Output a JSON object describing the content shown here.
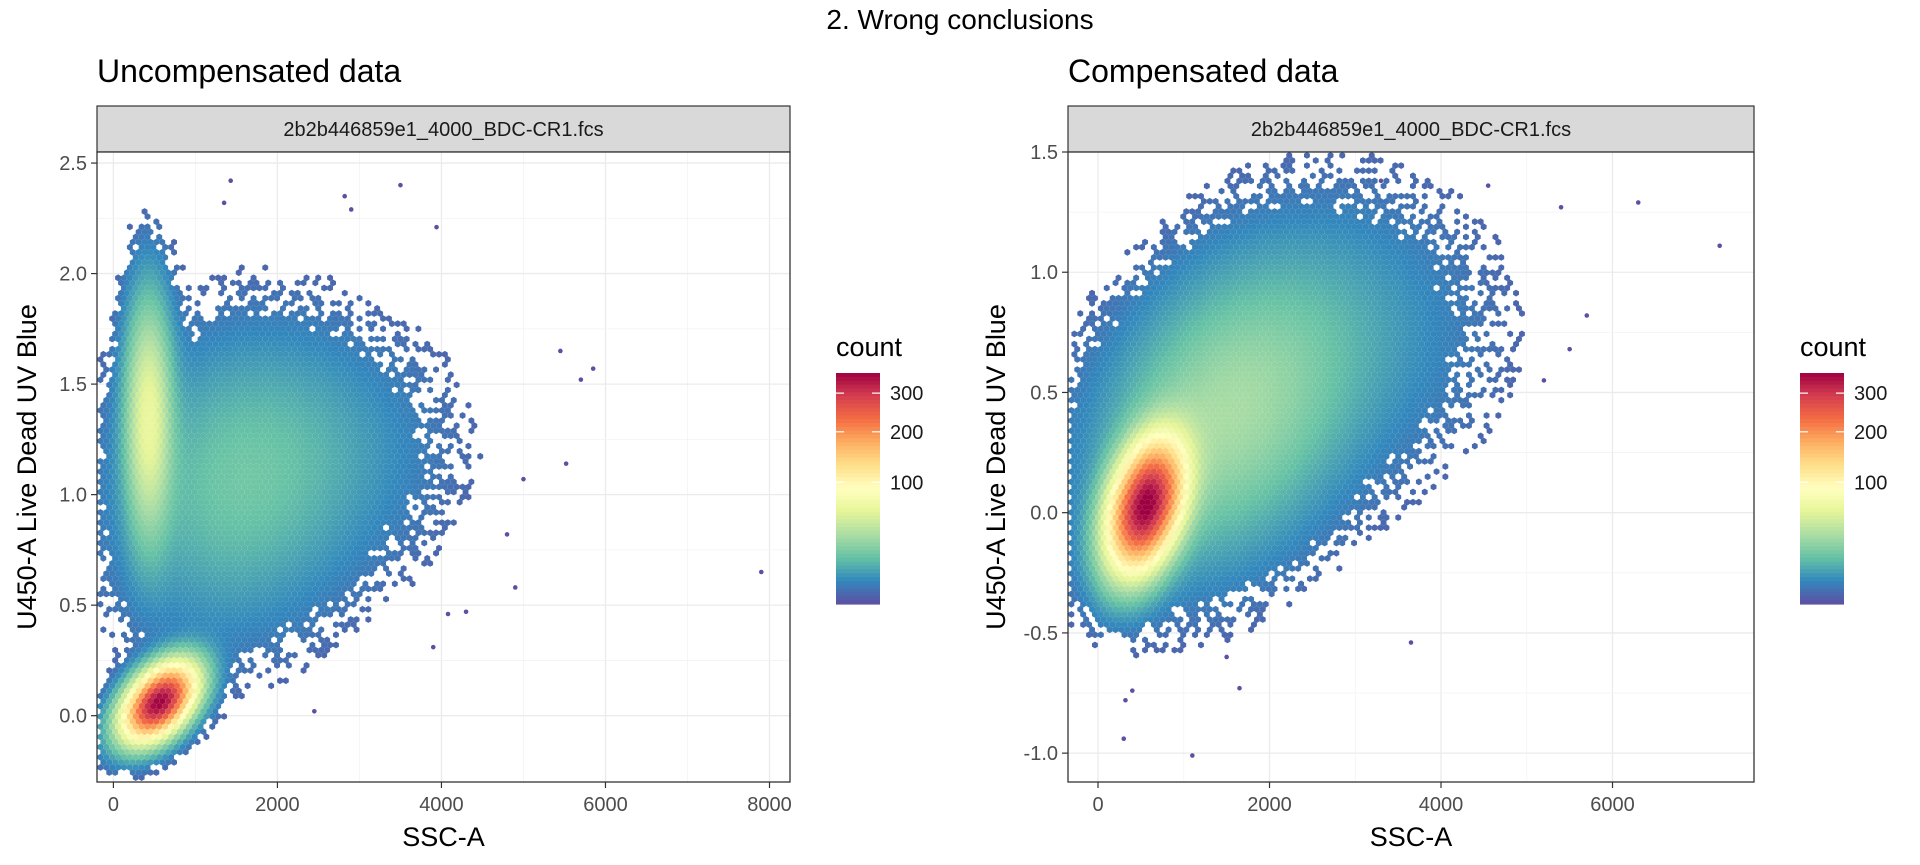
{
  "figure_title": "2. Wrong conclusions",
  "legend_title": "count",
  "chart_data": [
    {
      "type": "heatmap",
      "subtype": "hexbin",
      "title": "Uncompensated data",
      "facet_label": "2b2b446859e1_4000_BDC-CR1.fcs",
      "xlabel": "SSC-A",
      "ylabel": "U450-A Live Dead UV Blue",
      "xlim": [
        -200,
        8250
      ],
      "ylim": [
        -0.3,
        2.55
      ],
      "xticks": [
        0,
        2000,
        4000,
        6000,
        8000
      ],
      "yticks": [
        0.0,
        0.5,
        1.0,
        1.5,
        2.0,
        2.5
      ],
      "grid": true,
      "colorscale": "Spectral (reversed)",
      "count_range": [
        1,
        360
      ],
      "count_ticks": [
        100,
        200,
        300
      ],
      "clusters": [
        {
          "x": 560,
          "y": 0.06,
          "sx": 260,
          "sy": 0.1,
          "rho": 0.45,
          "weight": 1.0,
          "peak_count": 360
        },
        {
          "x": 430,
          "y": 1.35,
          "sx": 170,
          "sy": 0.32,
          "rho": 0.0,
          "weight": 0.45,
          "peak_count": 60
        },
        {
          "x": 1500,
          "y": 1.05,
          "sx": 850,
          "sy": 0.38,
          "rho": 0.1,
          "weight": 0.35,
          "peak_count": 15
        },
        {
          "x": 2700,
          "y": 1.2,
          "sx": 900,
          "sy": 0.32,
          "rho": 0.0,
          "weight": 0.12,
          "peak_count": 4
        }
      ],
      "outliers": [
        {
          "x": 1430,
          "y": 2.42
        },
        {
          "x": 3500,
          "y": 2.4
        },
        {
          "x": 2820,
          "y": 2.35
        },
        {
          "x": 2900,
          "y": 2.29
        },
        {
          "x": 1350,
          "y": 2.32
        },
        {
          "x": 3940,
          "y": 2.21
        },
        {
          "x": 5850,
          "y": 1.57
        },
        {
          "x": 5700,
          "y": 1.52
        },
        {
          "x": 5520,
          "y": 1.14
        },
        {
          "x": 7900,
          "y": 0.65
        },
        {
          "x": 4900,
          "y": 0.58
        },
        {
          "x": 4800,
          "y": 0.82
        },
        {
          "x": 4080,
          "y": 0.46
        },
        {
          "x": 3900,
          "y": 0.31
        },
        {
          "x": 4300,
          "y": 0.47
        },
        {
          "x": 2450,
          "y": 0.02
        },
        {
          "x": 5450,
          "y": 1.65
        },
        {
          "x": 5000,
          "y": 1.07
        }
      ]
    },
    {
      "type": "heatmap",
      "subtype": "hexbin",
      "title": "Compensated data",
      "facet_label": "2b2b446859e1_4000_BDC-CR1.fcs",
      "xlabel": "SSC-A",
      "ylabel": "U450-A Live Dead UV Blue",
      "xlim": [
        -350,
        7650
      ],
      "ylim": [
        -1.12,
        1.5
      ],
      "xticks": [
        0,
        2000,
        4000,
        6000
      ],
      "yticks": [
        -1.0,
        -0.5,
        0.0,
        0.5,
        1.0,
        1.5
      ],
      "grid": true,
      "colorscale": "Spectral (reversed)",
      "count_range": [
        1,
        360
      ],
      "count_ticks": [
        100,
        200,
        300
      ],
      "clusters": [
        {
          "x": 560,
          "y": 0.03,
          "sx": 260,
          "sy": 0.16,
          "rho": 0.35,
          "weight": 1.0,
          "peak_count": 360
        },
        {
          "x": 1500,
          "y": 0.4,
          "sx": 850,
          "sy": 0.35,
          "rho": 0.3,
          "weight": 0.4,
          "peak_count": 30
        },
        {
          "x": 2900,
          "y": 0.75,
          "sx": 1000,
          "sy": 0.35,
          "rho": 0.0,
          "weight": 0.12,
          "peak_count": 5
        }
      ],
      "outliers": [
        {
          "x": 7250,
          "y": 1.11
        },
        {
          "x": 6300,
          "y": 1.29
        },
        {
          "x": 5700,
          "y": 0.82
        },
        {
          "x": 5500,
          "y": 0.68
        },
        {
          "x": 5200,
          "y": 0.55
        },
        {
          "x": 300,
          "y": -0.94
        },
        {
          "x": 1100,
          "y": -1.01
        },
        {
          "x": 320,
          "y": -0.78
        },
        {
          "x": 400,
          "y": -0.74
        },
        {
          "x": 1500,
          "y": -0.6
        },
        {
          "x": 3650,
          "y": -0.54
        },
        {
          "x": 3300,
          "y": 1.38
        },
        {
          "x": 4550,
          "y": 1.36
        },
        {
          "x": 5400,
          "y": 1.27
        },
        {
          "x": 1650,
          "y": -0.73
        }
      ]
    }
  ]
}
